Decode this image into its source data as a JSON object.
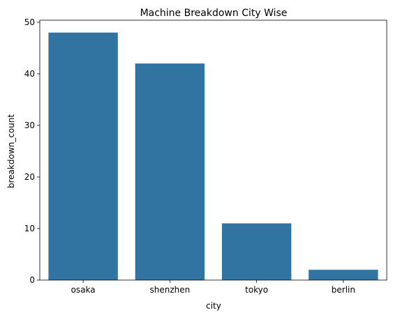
{
  "chart_data": {
    "type": "bar",
    "title": "Machine Breakdown City Wise",
    "xlabel": "city",
    "ylabel": "breakdown_count",
    "categories": [
      "osaka",
      "shenzhen",
      "tokyo",
      "berlin"
    ],
    "values": [
      48,
      42,
      11,
      2
    ],
    "ylim": [
      0,
      50.4
    ],
    "yticks": [
      0,
      10,
      20,
      30,
      40,
      50
    ],
    "ytick_labels": [
      "0",
      "10",
      "20",
      "30",
      "40",
      "50"
    ],
    "grid": false,
    "bar_color": "#3274a1"
  }
}
